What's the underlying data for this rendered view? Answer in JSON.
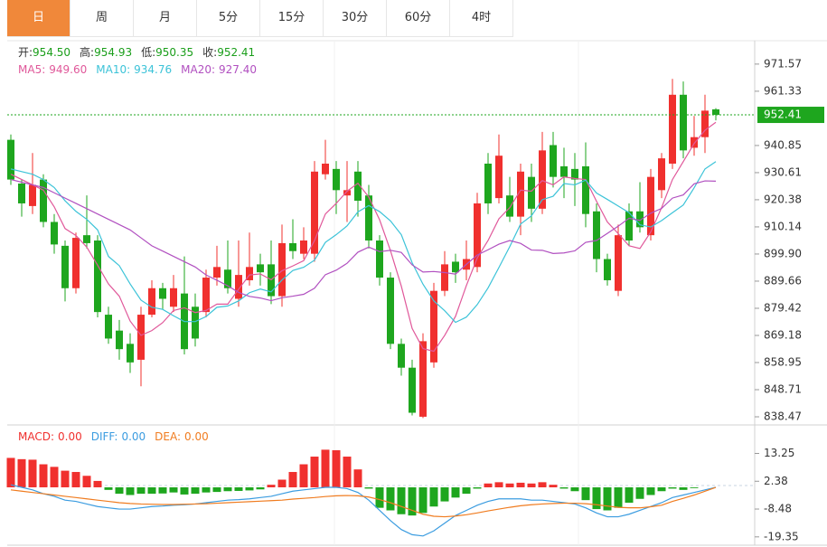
{
  "tabs": [
    "日",
    "周",
    "月",
    "5分",
    "15分",
    "30分",
    "60分",
    "4时"
  ],
  "active_tab": 0,
  "chart_data": [
    {
      "type": "candlestick",
      "up_color": "#f0302e",
      "down_color": "#1ea61e",
      "header": [
        {
          "label": "开:",
          "value": "954.50"
        },
        {
          "label": "高:",
          "value": "954.93"
        },
        {
          "label": "低:",
          "value": "950.35"
        },
        {
          "label": "收:",
          "value": "952.41"
        }
      ],
      "last_price": 952.41,
      "ylim": [
        835.4,
        980.4
      ],
      "yticks": [
        838.47,
        848.71,
        858.95,
        869.18,
        879.42,
        {
          "value": 889.66,
          "label": "889.66"
        },
        {
          "value": 899.9,
          "label": "899.90"
        },
        910.14,
        920.38,
        930.61,
        940.85,
        961.33,
        971.57
      ],
      "open": [
        943,
        926.5,
        918,
        928,
        912,
        903,
        887,
        907,
        905,
        877,
        871,
        866,
        860,
        877,
        887,
        880,
        885,
        880,
        878,
        891,
        894,
        883,
        890,
        896,
        896,
        884,
        904,
        900,
        900,
        930,
        932,
        922,
        931,
        922,
        905,
        891,
        866,
        857,
        838.5,
        859,
        886,
        897,
        894,
        895,
        934,
        921,
        922,
        914,
        929,
        917,
        941,
        933,
        932,
        933,
        916,
        898,
        886,
        916,
        916,
        907,
        924,
        934,
        960,
        940,
        944,
        954.5
      ],
      "high": [
        945,
        928,
        938,
        930,
        915,
        905,
        908,
        922,
        907,
        880,
        875,
        870,
        880,
        890,
        889,
        892,
        899,
        885,
        894,
        903,
        905,
        905,
        908,
        900,
        905,
        911,
        913,
        910,
        935,
        943,
        935,
        935,
        935,
        926,
        907,
        893,
        868,
        860,
        870,
        889,
        901,
        900,
        905,
        923,
        938,
        945,
        929,
        934,
        934,
        946,
        946,
        940,
        938,
        942,
        919,
        900,
        911,
        919,
        927,
        932,
        938,
        966,
        965,
        952,
        960,
        954.93
      ],
      "low": [
        926,
        914,
        915,
        910,
        900,
        882,
        885,
        902,
        876,
        866,
        860,
        855,
        850,
        876,
        879,
        878,
        862,
        865,
        876,
        888,
        885,
        880,
        888,
        888,
        881,
        880,
        898,
        898,
        897,
        928,
        915,
        912,
        914,
        902,
        888,
        864,
        854,
        839,
        838,
        857,
        884,
        889,
        890,
        893,
        915,
        919,
        912,
        907,
        912,
        915,
        925,
        921,
        918,
        910,
        893,
        888,
        884,
        903,
        908,
        905,
        921,
        932,
        936,
        937,
        938,
        950.35
      ],
      "close": [
        928,
        919,
        926,
        912,
        903.5,
        887,
        906,
        904,
        878,
        868,
        864,
        859,
        877,
        887,
        883,
        887,
        864,
        868,
        891,
        895,
        887,
        892,
        895,
        893,
        884,
        904,
        901,
        905,
        931,
        934,
        924,
        924,
        920,
        905,
        891,
        866,
        857,
        840,
        867,
        886,
        896,
        893,
        898,
        919,
        919,
        937,
        914,
        931,
        917,
        939,
        929,
        929,
        928,
        915,
        898,
        890,
        907,
        905,
        910,
        929,
        936,
        960,
        939,
        944,
        954,
        952.41
      ],
      "series": [
        {
          "name": "MA5:",
          "value_label": "949.60",
          "color": "#e0589a",
          "values": [
            930,
            928,
            926,
            924,
            917.7,
            909.5,
            906.9,
            902.5,
            895.7,
            888.6,
            884,
            874.6,
            869.2,
            871,
            874,
            878.6,
            879.6,
            877.8,
            878.6,
            881,
            881,
            886.6,
            892,
            892.4,
            890.2,
            893.6,
            895.4,
            897.4,
            905,
            915,
            919,
            923.6,
            926.6,
            921.4,
            912.8,
            901.2,
            887.8,
            871.8,
            864.2,
            863.2,
            869.2,
            876.4,
            888,
            898.4,
            905,
            913.2,
            917.4,
            924,
            923.6,
            927.6,
            926,
            929,
            928.4,
            928,
            919.8,
            912,
            907.6,
            903,
            902,
            908.2,
            917.4,
            928,
            934.8,
            941.6,
            946.6,
            949.6
          ]
        },
        {
          "name": "MA10:",
          "value_label": "934.76",
          "color": "#3cc3d8",
          "values": [
            932,
            931,
            930,
            928,
            925,
            920,
            916,
            913,
            909,
            899,
            895.5,
            888.6,
            882.5,
            879.8,
            879,
            876.6,
            874.4,
            874.4,
            876.3,
            879.8,
            880.3,
            882.2,
            885.3,
            886.7,
            885.6,
            890.1,
            893.7,
            894.9,
            897.6,
            904.3,
            907.2,
            910.5,
            915.8,
            918.2,
            915.9,
            912.4,
            907.2,
            896.6,
            888.5,
            882.2,
            878.5,
            874.1,
            876.1,
            880.8,
            887.1,
            894.8,
            902.7,
            911.2,
            914.3,
            920.4,
            921.7,
            926.5,
            926,
            927.8,
            922.9,
            920.5,
            918,
            915.5,
            910.9,
            910.1,
            912.5,
            915.5,
            918.4,
            924.9,
            932,
            934.76
          ]
        },
        {
          "name": "MA20:",
          "value_label": "927.40",
          "color": "#b150c0",
          "values": [
            928,
            927,
            926,
            925,
            923,
            921,
            919,
            917,
            915,
            913,
            911,
            909,
            906,
            903,
            901,
            899,
            897,
            895,
            892,
            890,
            887.9,
            885.4,
            883.9,
            883.3,
            882.3,
            883.4,
            884,
            884.7,
            887,
            892.1,
            893.8,
            896.4,
            900.6,
            902.5,
            900.8,
            901.3,
            900.5,
            895.8,
            893.1,
            893.3,
            892.9,
            892.3,
            896,
            899.5,
            901.5,
            903.6,
            905,
            903.9,
            901.4,
            901.3,
            900.1,
            900.3,
            901.1,
            904.3,
            905,
            907.7,
            910.4,
            913.4,
            912.6,
            915.3,
            917.1,
            921,
            922.2,
            926.4,
            927.5,
            927.4
          ]
        }
      ]
    },
    {
      "type": "macd",
      "up_color": "#f0302e",
      "down_color": "#1ea61e",
      "ylim": [
        -22.6,
        21.9
      ],
      "yticks": [
        -19.35,
        -8.48,
        2.38,
        13.25
      ],
      "series": [
        {
          "name": "MACD:",
          "value_label": "0.00",
          "color": "#f0302e",
          "values": [
            11.5,
            11,
            10.8,
            9,
            8,
            6.5,
            6,
            4.5,
            2.5,
            -1,
            -2.5,
            -3,
            -2.5,
            -2.5,
            -2.4,
            -2,
            -2.8,
            -2.5,
            -2,
            -1.8,
            -1.5,
            -1.4,
            -1.2,
            -0.8,
            1,
            3,
            6,
            9,
            12,
            14.7,
            14.5,
            12,
            7,
            -0.5,
            -8,
            -9,
            -10.5,
            -11,
            -10,
            -7.5,
            -5.5,
            -4,
            -2.5,
            -0.5,
            1.5,
            2,
            1.5,
            1.8,
            1.5,
            2,
            1,
            -0.5,
            -1.5,
            -5,
            -8.5,
            -9,
            -8,
            -6,
            -4.5,
            -3,
            -1.5,
            -0.5,
            -1,
            -0.3,
            0,
            0
          ]
        },
        {
          "name": "DIFF:",
          "value_label": "0.00",
          "color": "#3b9ce0",
          "values": [
            1,
            0,
            -1,
            -2.5,
            -3.5,
            -5,
            -5.5,
            -6.5,
            -7.5,
            -8,
            -8.5,
            -8.5,
            -8,
            -7.5,
            -7.3,
            -7,
            -6.8,
            -6.5,
            -6,
            -5.5,
            -5,
            -4.8,
            -4.5,
            -4,
            -3.5,
            -2.5,
            -1.5,
            -1,
            -0.5,
            0,
            0,
            -0.5,
            -2,
            -5,
            -9,
            -13,
            -16.5,
            -18.5,
            -19,
            -17,
            -14,
            -11,
            -9,
            -7,
            -5.5,
            -4.5,
            -4.5,
            -4.5,
            -5,
            -5,
            -5.5,
            -6,
            -6.5,
            -8,
            -10,
            -11.5,
            -11.5,
            -10.5,
            -9,
            -7.5,
            -6,
            -4,
            -3,
            -2,
            -1,
            0
          ]
        },
        {
          "name": "DEA:",
          "value_label": "0.00",
          "color": "#f07c20",
          "values": [
            -1,
            -1.5,
            -2,
            -2.5,
            -3,
            -3.5,
            -4,
            -4.5,
            -5,
            -5.5,
            -6,
            -6.3,
            -6.5,
            -6.6,
            -6.7,
            -6.7,
            -6.6,
            -6.5,
            -6.4,
            -6.2,
            -6,
            -5.8,
            -5.6,
            -5.4,
            -5.2,
            -5,
            -4.6,
            -4.3,
            -4,
            -3.6,
            -3.3,
            -3.2,
            -3.3,
            -3.8,
            -4.8,
            -6,
            -7.5,
            -9,
            -10.5,
            -11.3,
            -11.5,
            -11.2,
            -10.7,
            -10,
            -9.2,
            -8.5,
            -7.8,
            -7.2,
            -6.8,
            -6.5,
            -6.3,
            -6.2,
            -6.2,
            -6.4,
            -6.8,
            -7.3,
            -7.8,
            -8,
            -8,
            -7.6,
            -7,
            -5.5,
            -4.3,
            -3,
            -1.5,
            0
          ]
        }
      ]
    }
  ]
}
